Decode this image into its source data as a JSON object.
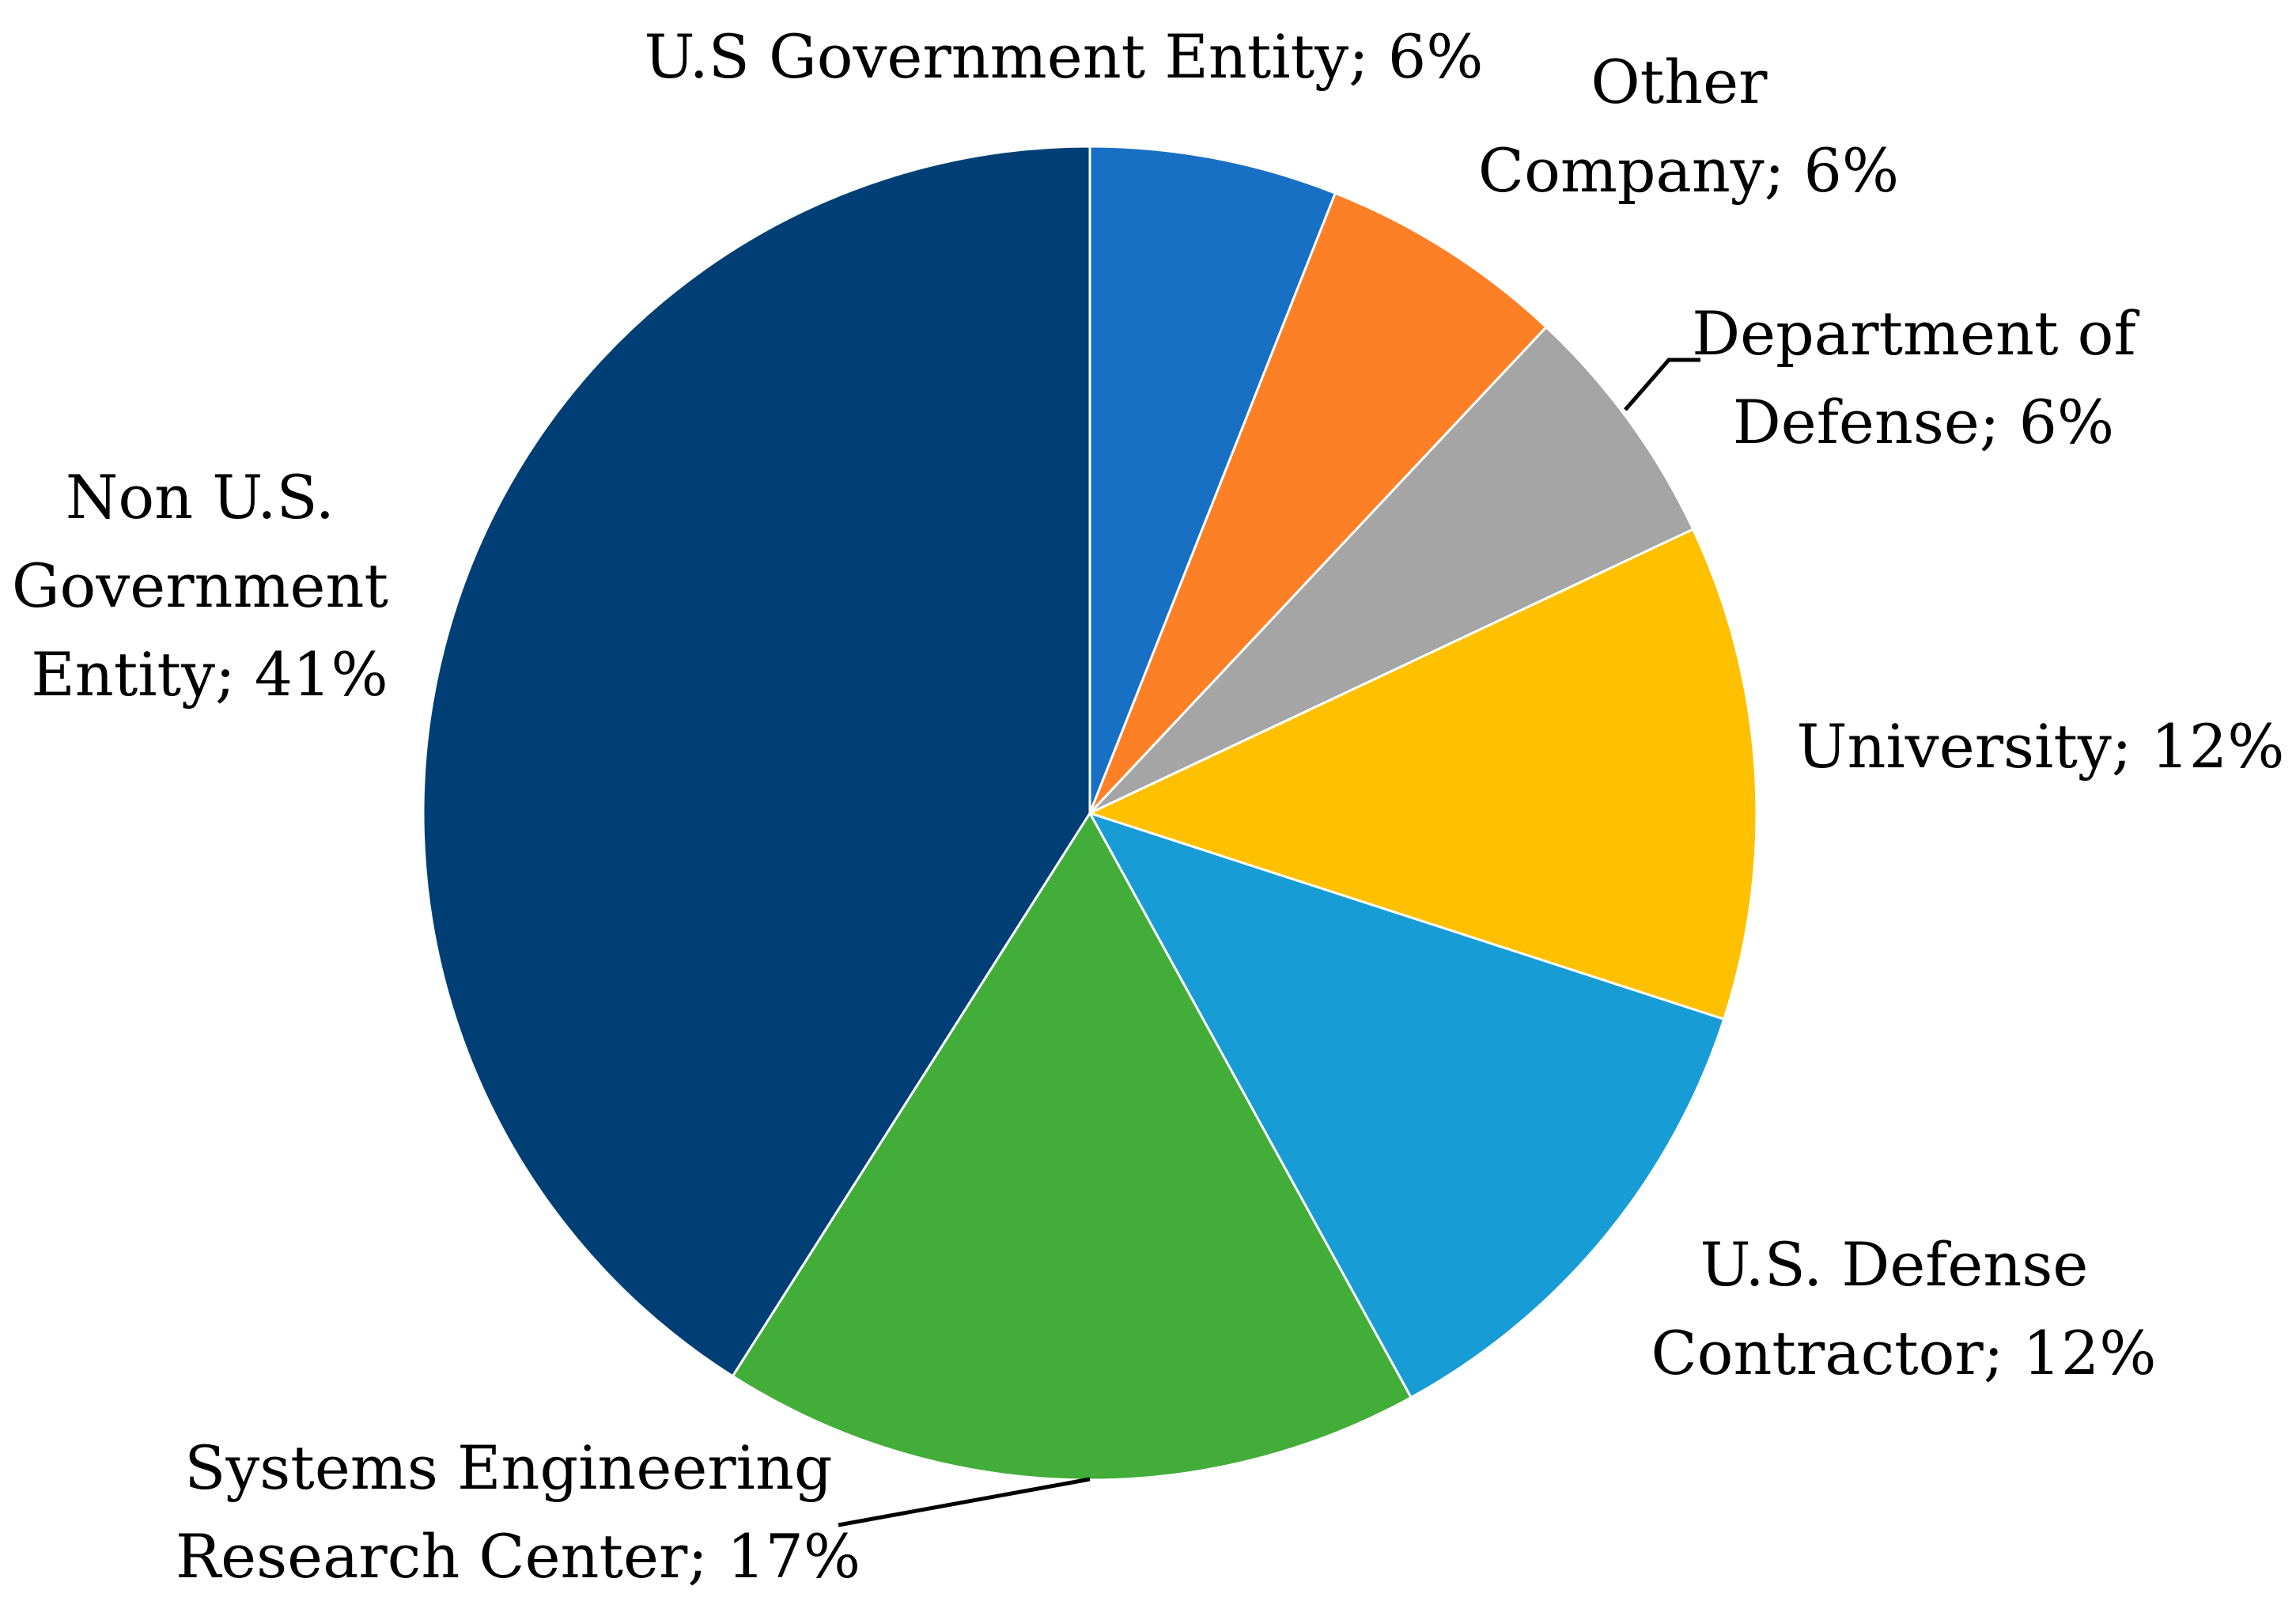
{
  "chart_data": {
    "type": "pie",
    "start_angle_deg": 0,
    "direction": "clockwise",
    "slices": [
      {
        "label": "U.S Government Entity",
        "value": 6,
        "data_label": "U.S Government Entity; 6%",
        "color": "#1870C5"
      },
      {
        "label": "Other Company",
        "value": 6,
        "data_label": "Other Company; 6%",
        "color": "#FD7F26"
      },
      {
        "label": "Department of Defense",
        "value": 6,
        "data_label": "Department of Defense; 6%",
        "color": "#A5A5A5"
      },
      {
        "label": "University",
        "value": 12,
        "data_label": "University; 12%",
        "color": "#FFC000"
      },
      {
        "label": "U.S. Defense Contractor",
        "value": 12,
        "data_label": "U.S. Defense Contractor; 12%",
        "color": "#189CD6"
      },
      {
        "label": "Systems Engineering Research Center",
        "value": 17,
        "data_label": "Systems Engineering Research Center; 17%",
        "color": "#43AD3A"
      },
      {
        "label": "Non U.S. Government Entity",
        "value": 41,
        "data_label": "Non U.S. Government Entity; 41%",
        "color": "#003F75"
      }
    ]
  },
  "labels": {
    "us_gov": [
      "U.S Government Entity; 6%"
    ],
    "other_company": [
      "Other",
      "Company; 6%"
    ],
    "dod": [
      "Department of",
      "Defense; 6%"
    ],
    "university": [
      "University; 12%"
    ],
    "defense_contractor": [
      "U.S. Defense",
      "Contractor; 12%"
    ],
    "serc": [
      "Systems Engineering",
      "Research Center; 17%"
    ],
    "non_us_gov": [
      "Non U.S.",
      "Government",
      "Entity; 41%"
    ]
  }
}
